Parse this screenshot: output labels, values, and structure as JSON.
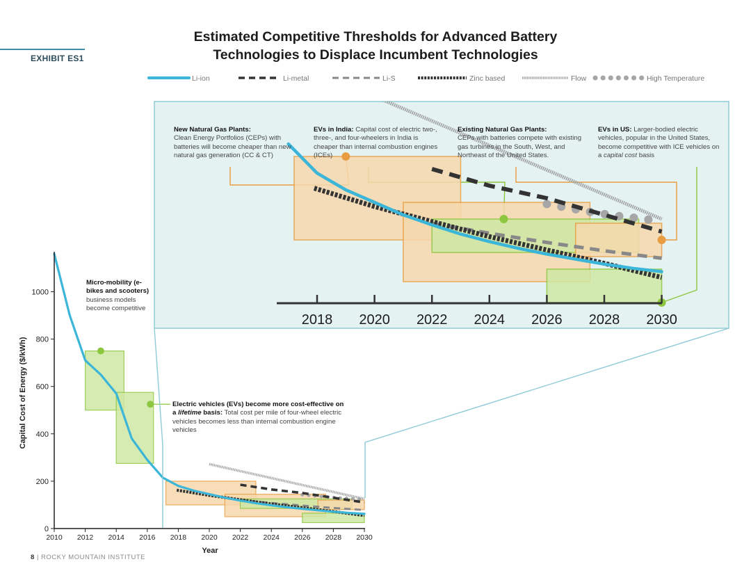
{
  "exhibit": "EXHIBIT ES1",
  "title_line1": "Estimated Competitive Thresholds for Advanced Battery",
  "title_line2": "Technologies to Displace Incumbent Technologies",
  "footer_page": "8",
  "footer_org": "| ROCKY MOUNTAIN INSTITUTE",
  "colors": {
    "li_ion": "#3bb5d8",
    "li_metal": "#333333",
    "li_s": "#888888",
    "zinc": "#333333",
    "flow": "#a0a0a0",
    "high_temp": "#a6a6a6",
    "orange_box": "#f6d9ad",
    "orange_edge": "#e89d42",
    "green_box": "#cfe8a5",
    "green_edge": "#8dc63f",
    "inset_bg": "#e5f2f2",
    "inset_edge": "#8fcad6"
  },
  "annotations": {
    "micro_bold": "Micro-mobility (e-bikes and scooters)",
    "micro_text": "business models become competitive",
    "ev_bold": "Electric vehicles (EVs) become more cost-effective on a",
    "ev_italic": "lifetime",
    "ev_bold2": "basis:",
    "ev_text": "Total cost per mile of four-wheel electric vehicles becomes less than internal combustion engine vehicles",
    "ngp_bold": "New Natural Gas Plants:",
    "ngp_text": "Clean Energy Portfolios (CEPs) with batteries will become cheaper than new natural gas generation (CC & CT)",
    "india_bold": "EVs in India:",
    "india_text": "Capital cost of electric two-, three-, and four-wheelers in India is cheaper than internal combustion engines (ICEs)",
    "engp_bold": "Existing Natural Gas Plants:",
    "engp_text": "CEPs with batteries compete with existing gas turbines in the South, West, and Northeast of the United States.",
    "us_bold": "EVs in US:",
    "us_text1": "Larger-bodied electric vehicles, popular in the United States, become competitive with ICE vehicles on a",
    "us_italic": "capital cost",
    "us_text2": "basis"
  },
  "chart_data": {
    "type": "line",
    "title": "Estimated Competitive Thresholds for Advanced Battery Technologies to Displace Incumbent Technologies",
    "xlabel": "Year",
    "ylabel": "Capital Cost of Energy ($/kWh)",
    "xlim": [
      2010,
      2030
    ],
    "ylim": [
      0,
      1150
    ],
    "xticks": [
      2010,
      2012,
      2014,
      2016,
      2018,
      2020,
      2022,
      2024,
      2026,
      2028,
      2030
    ],
    "yticks": [
      0,
      200,
      400,
      600,
      800,
      1000
    ],
    "inset_xticks": [
      2018,
      2020,
      2022,
      2024,
      2026,
      2028,
      2030
    ],
    "legend_position": "top",
    "series": [
      {
        "name": "Li-ion",
        "style": "solid",
        "points": [
          [
            2010,
            1160
          ],
          [
            2011,
            900
          ],
          [
            2012,
            710
          ],
          [
            2013,
            650
          ],
          [
            2014,
            570
          ],
          [
            2015,
            380
          ],
          [
            2016,
            290
          ],
          [
            2017,
            215
          ],
          [
            2018,
            180
          ],
          [
            2019,
            160
          ],
          [
            2020,
            145
          ],
          [
            2021,
            130
          ],
          [
            2022,
            118
          ],
          [
            2023,
            107
          ],
          [
            2024,
            98
          ],
          [
            2025,
            90
          ],
          [
            2026,
            83
          ],
          [
            2027,
            77
          ],
          [
            2028,
            71
          ],
          [
            2029,
            66
          ],
          [
            2030,
            62
          ]
        ]
      },
      {
        "name": "Li-metal",
        "style": "dashed",
        "points": [
          [
            2022,
            185
          ],
          [
            2024,
            165
          ],
          [
            2026,
            150
          ],
          [
            2028,
            130
          ],
          [
            2030,
            110
          ]
        ]
      },
      {
        "name": "Li-S",
        "style": "dashed-light",
        "points": [
          [
            2022,
            120
          ],
          [
            2024,
            108
          ],
          [
            2026,
            97
          ],
          [
            2028,
            87
          ],
          [
            2030,
            78
          ]
        ]
      },
      {
        "name": "Zinc based",
        "style": "dense-dash",
        "points": [
          [
            2017.9,
            162
          ],
          [
            2020,
            140
          ],
          [
            2022,
            122
          ],
          [
            2024,
            104
          ],
          [
            2026,
            88
          ],
          [
            2028,
            72
          ],
          [
            2030,
            55
          ]
        ]
      },
      {
        "name": "Flow",
        "style": "fine-dotted",
        "points": [
          [
            2020,
            272
          ],
          [
            2030,
            125
          ]
        ]
      },
      {
        "name": "High Temperature",
        "style": "dots",
        "points": [
          [
            2026,
            143
          ],
          [
            2026.8,
            138
          ],
          [
            2027.6,
            133
          ],
          [
            2028.4,
            129
          ],
          [
            2029.2,
            126
          ],
          [
            2030,
            122
          ]
        ]
      }
    ],
    "threshold_boxes": [
      {
        "label": "Micro-mobility",
        "color": "green",
        "x": [
          2012,
          2014.5
        ],
        "y": [
          500,
          750
        ],
        "marker": [
          2013,
          750
        ]
      },
      {
        "label": "EVs lifetime basis",
        "color": "green",
        "x": [
          2014,
          2016.4
        ],
        "y": [
          275,
          575
        ],
        "marker": [
          2016.2,
          525
        ]
      },
      {
        "label": "New Natural Gas Plants",
        "color": "orange",
        "x": [
          2017.2,
          2023
        ],
        "y": [
          100,
          200
        ],
        "marker": [
          2019,
          200
        ]
      },
      {
        "label": "EVs in India",
        "color": "orange",
        "x": [
          2021,
          2027.5
        ],
        "y": [
          50,
          145
        ],
        "marker": [
          2024.5,
          145
        ]
      },
      {
        "label": "Existing Natural Gas Plants",
        "color": "green",
        "x": [
          2022,
          2029.2
        ],
        "y": [
          85,
          125
        ],
        "marker": [
          2024.5,
          125
        ]
      },
      {
        "label": "EVs in US",
        "color": "green",
        "x": [
          2026,
          2030
        ],
        "y": [
          25,
          65
        ],
        "marker": [
          2030,
          25
        ]
      },
      {
        "label": "EVs in US (cost level)",
        "color": "orange",
        "x": [
          2027,
          2030
        ],
        "y": [
          80,
          120
        ],
        "marker": [
          2030,
          100
        ]
      }
    ]
  }
}
